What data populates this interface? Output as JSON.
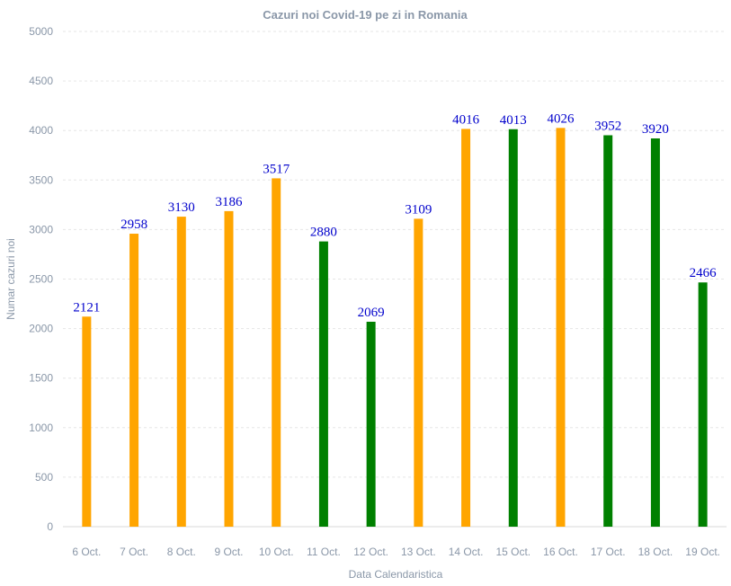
{
  "chart_data": {
    "type": "bar",
    "title": "Cazuri noi Covid-19 pe zi in Romania",
    "xlabel": "Data Calendaristica",
    "ylabel": "Numar cazuri noi",
    "ylim": [
      0,
      5000
    ],
    "yticks": [
      0,
      500,
      1000,
      1500,
      2000,
      2500,
      3000,
      3500,
      4000,
      4500,
      5000
    ],
    "grid": true,
    "categories": [
      "6 Oct.",
      "7 Oct.",
      "8 Oct.",
      "9 Oct.",
      "10 Oct.",
      "11 Oct.",
      "12 Oct.",
      "13 Oct.",
      "14 Oct.",
      "15 Oct.",
      "16 Oct.",
      "17 Oct.",
      "18 Oct.",
      "19 Oct."
    ],
    "values": [
      2121,
      2958,
      3130,
      3186,
      3517,
      2880,
      2069,
      3109,
      4016,
      4013,
      4026,
      3952,
      3920,
      2466
    ],
    "bar_colors": [
      "#ffa500",
      "#ffa500",
      "#ffa500",
      "#ffa500",
      "#ffa500",
      "#008000",
      "#008000",
      "#ffa500",
      "#ffa500",
      "#008000",
      "#ffa500",
      "#008000",
      "#008000",
      "#008000"
    ],
    "data_label_color": "#0000cc"
  }
}
